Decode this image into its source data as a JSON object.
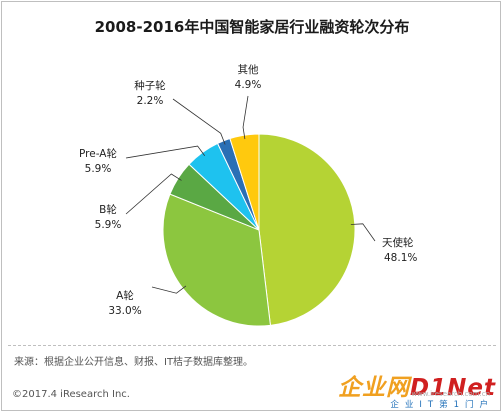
{
  "title": "2008-2016年中国智能家居行业融资轮次分布",
  "source": "来源：根据企业公开信息、财报、IT桔子数据库整理。",
  "copyright": "©2017.4 iResearch Inc.",
  "watermark": {
    "logo_a": "企业网",
    "logo_b": "D1Net",
    "url": "www.iresearch.com.cn",
    "sub": "企业IT第1门户"
  },
  "chart_data": {
    "type": "pie",
    "start_angle_deg": 0,
    "direction": "clockwise",
    "slices": [
      {
        "name": "天使轮",
        "value": 48.1,
        "label": "48.1%",
        "color": "#b5d334"
      },
      {
        "name": "A轮",
        "value": 33.0,
        "label": "33.0%",
        "color": "#8cc63f"
      },
      {
        "name": "B轮",
        "value": 5.9,
        "label": "5.9%",
        "color": "#5aa844"
      },
      {
        "name": "Pre-A轮",
        "value": 5.9,
        "label": "5.9%",
        "color": "#1ec2ef"
      },
      {
        "name": "种子轮",
        "value": 2.2,
        "label": "2.2%",
        "color": "#2a6fb5"
      },
      {
        "name": "其他",
        "value": 4.9,
        "label": "4.9%",
        "color": "#ffc90e"
      }
    ]
  }
}
